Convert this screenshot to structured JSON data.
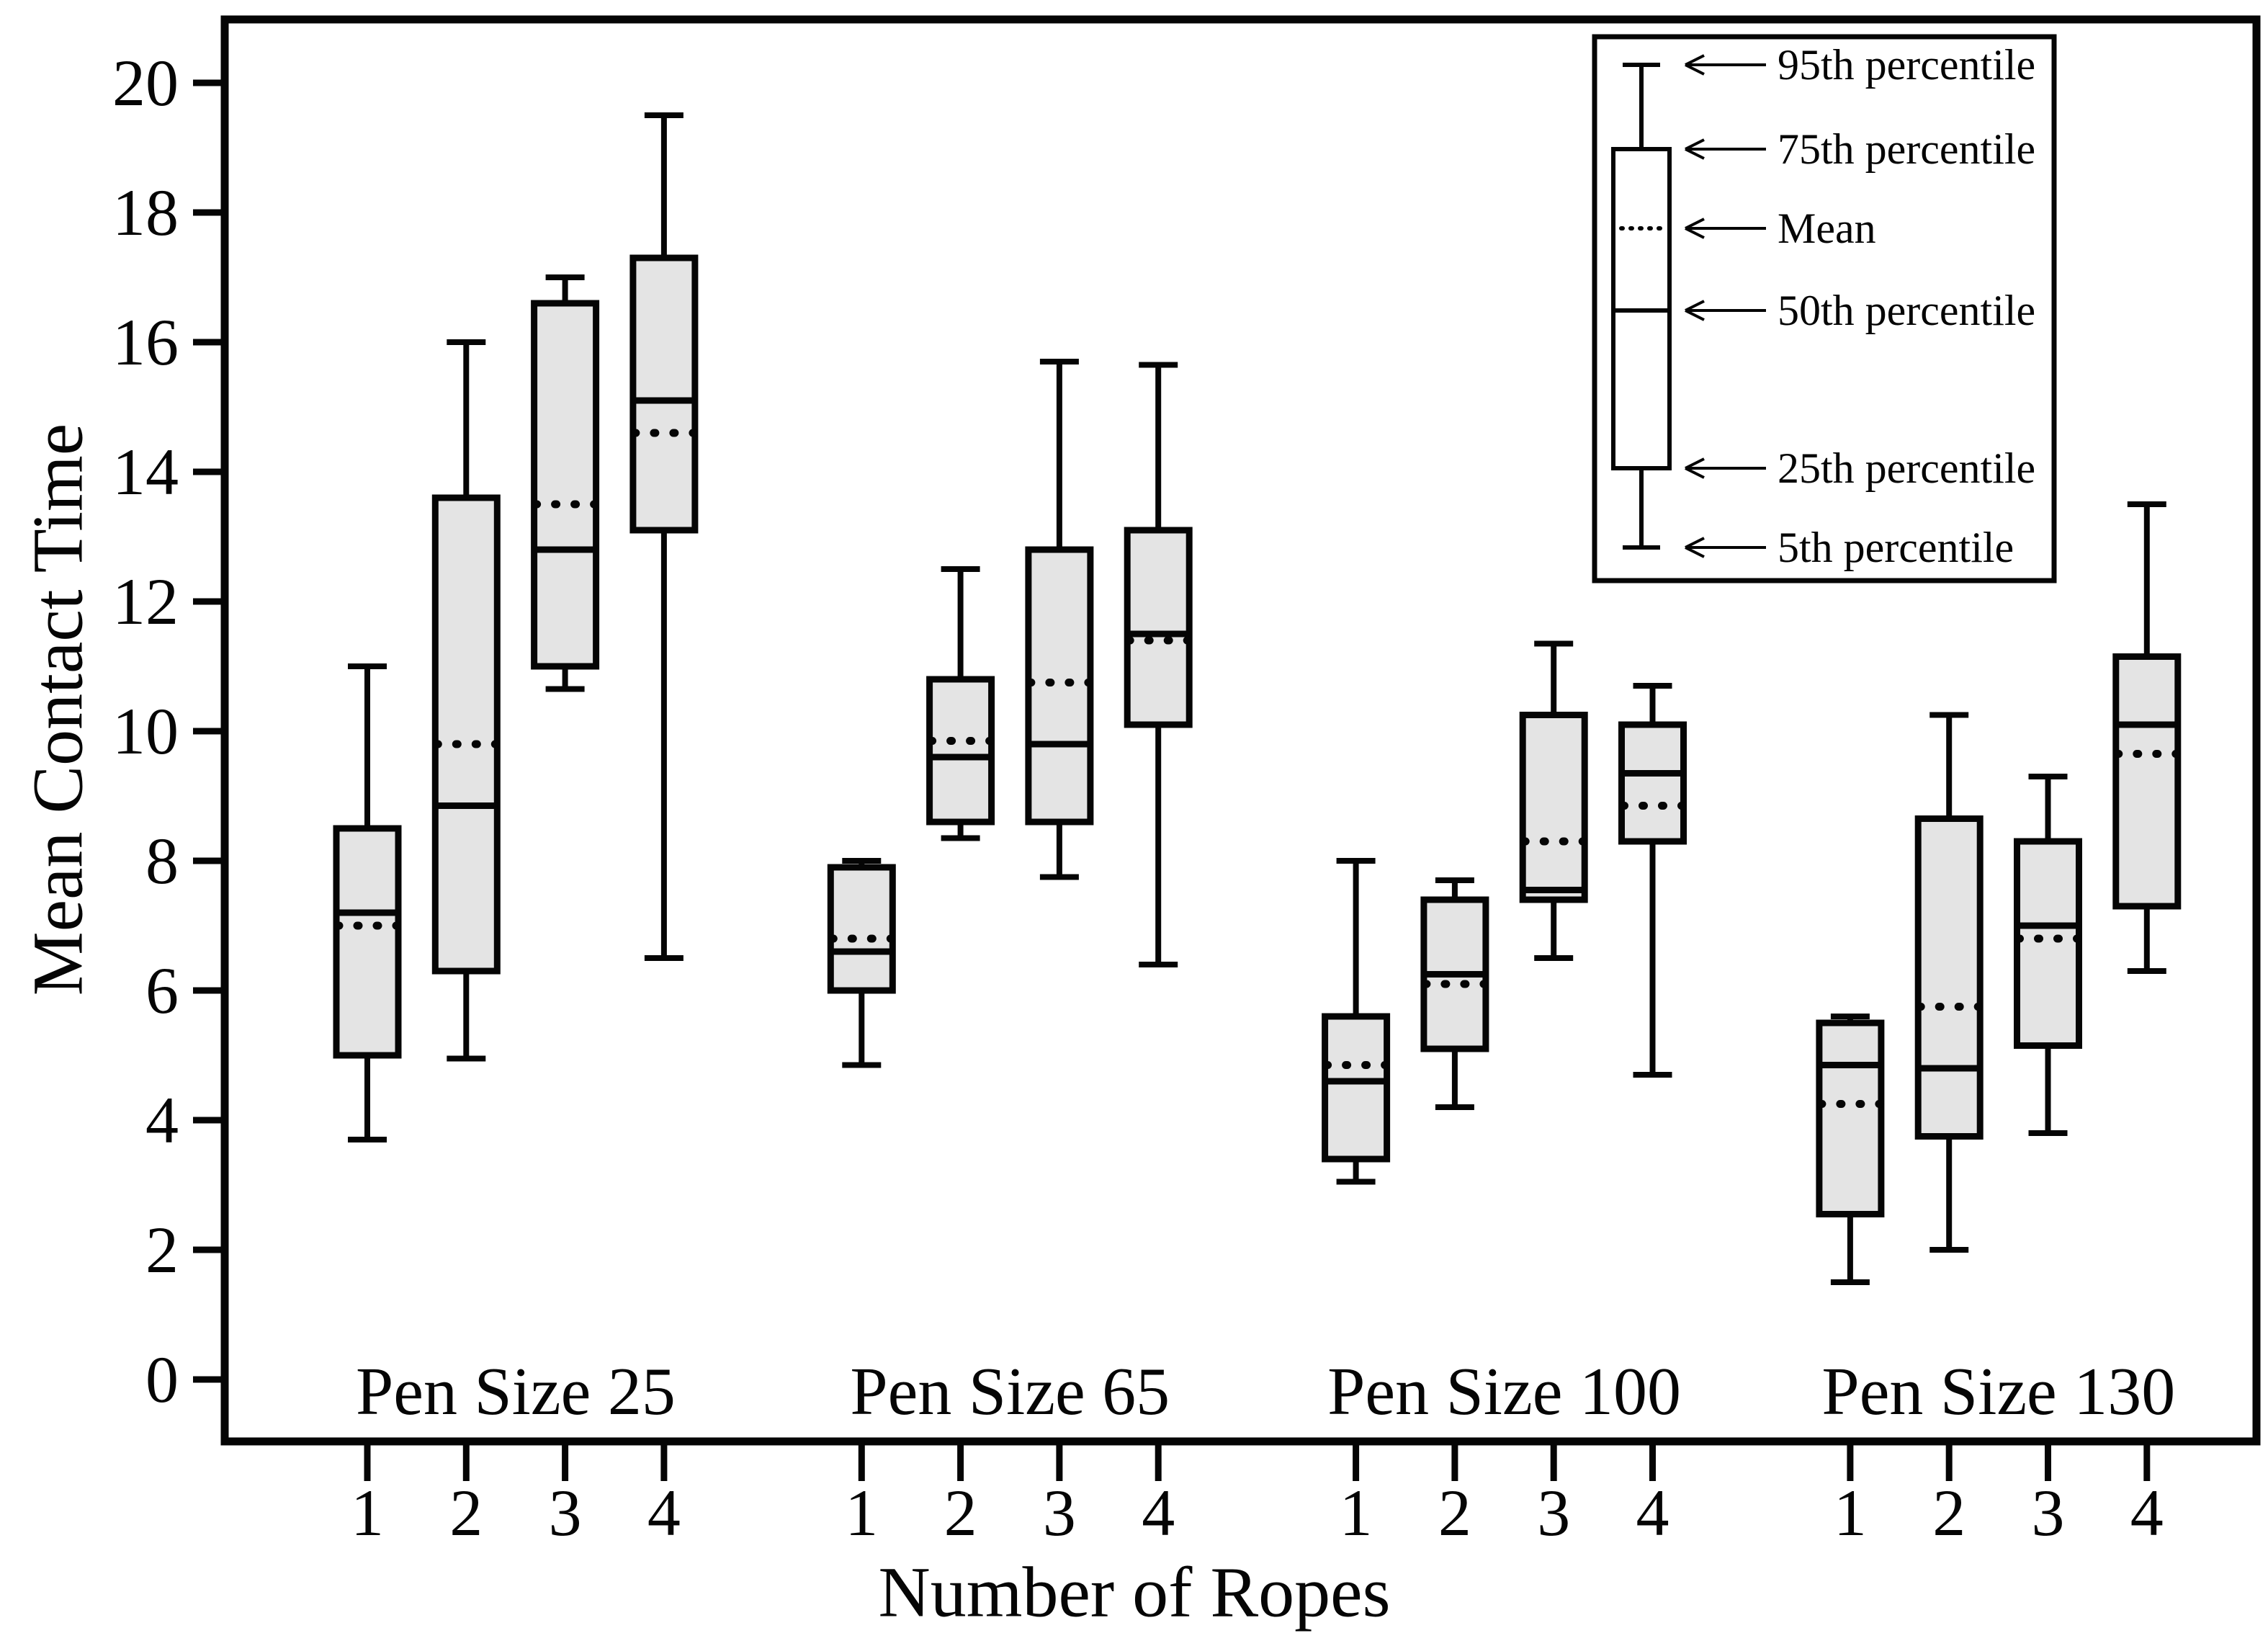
{
  "chart_data": {
    "type": "boxplot",
    "title": "",
    "xlabel": "Number of Ropes",
    "ylabel": "Mean Contact Time",
    "y_axis": {
      "min": 0,
      "max": 20,
      "tick_step": 2,
      "tick_labels": [
        "0",
        "2",
        "4",
        "6",
        "8",
        "10",
        "12",
        "14",
        "16",
        "18",
        "20"
      ],
      "axis_range_drawn": [
        -0.95,
        21.0
      ]
    },
    "x_axis": {
      "rope_labels": [
        "1",
        "2",
        "3",
        "4"
      ],
      "group_labels": [
        "Pen Size 25",
        "Pen Size 65",
        "Pen Size 100",
        "Pen Size 130"
      ]
    },
    "grid": false,
    "legend_position": "top-right",
    "legend": {
      "entries": [
        "95th percentile",
        "75th percentile",
        "Mean",
        "50th percentile",
        "25th percentile",
        "5th percentile"
      ]
    },
    "groups": [
      {
        "label": "Pen Size 25",
        "boxes": [
          {
            "rope": "1",
            "p5": 3.7,
            "q1": 5.0,
            "median": 7.2,
            "mean": 7.0,
            "q3": 8.5,
            "p95": 11.0
          },
          {
            "rope": "2",
            "p5": 4.95,
            "q1": 6.3,
            "median": 8.85,
            "mean": 9.8,
            "q3": 13.6,
            "p95": 16.0
          },
          {
            "rope": "3",
            "p5": 10.65,
            "q1": 11.0,
            "median": 12.8,
            "mean": 13.5,
            "q3": 16.6,
            "p95": 17.0
          },
          {
            "rope": "4",
            "p5": 6.5,
            "q1": 13.1,
            "median": 15.1,
            "mean": 14.6,
            "q3": 17.3,
            "p95": 19.5
          }
        ]
      },
      {
        "label": "Pen Size 65",
        "boxes": [
          {
            "rope": "1",
            "p5": 4.85,
            "q1": 6.0,
            "median": 6.6,
            "mean": 6.8,
            "q3": 7.9,
            "p95": 8.0
          },
          {
            "rope": "2",
            "p5": 8.35,
            "q1": 8.6,
            "median": 9.6,
            "mean": 9.85,
            "q3": 10.8,
            "p95": 12.5
          },
          {
            "rope": "3",
            "p5": 7.75,
            "q1": 8.6,
            "median": 9.8,
            "mean": 10.75,
            "q3": 12.8,
            "p95": 15.7
          },
          {
            "rope": "4",
            "p5": 6.4,
            "q1": 10.1,
            "median": 11.5,
            "mean": 11.4,
            "q3": 13.1,
            "p95": 15.65
          }
        ]
      },
      {
        "label": "Pen Size 100",
        "boxes": [
          {
            "rope": "1",
            "p5": 3.05,
            "q1": 3.4,
            "median": 4.6,
            "mean": 4.85,
            "q3": 5.6,
            "p95": 8.0
          },
          {
            "rope": "2",
            "p5": 4.2,
            "q1": 5.1,
            "median": 6.25,
            "mean": 6.1,
            "q3": 7.4,
            "p95": 7.7
          },
          {
            "rope": "3",
            "p5": 6.5,
            "q1": 7.4,
            "median": 7.55,
            "mean": 8.3,
            "q3": 10.25,
            "p95": 11.35
          },
          {
            "rope": "4",
            "p5": 4.7,
            "q1": 8.3,
            "median": 9.35,
            "mean": 8.85,
            "q3": 10.1,
            "p95": 10.7
          }
        ]
      },
      {
        "label": "Pen Size 130",
        "boxes": [
          {
            "rope": "1",
            "p5": 1.5,
            "q1": 2.55,
            "median": 4.85,
            "mean": 4.25,
            "q3": 5.5,
            "p95": 5.6
          },
          {
            "rope": "2",
            "p5": 2.0,
            "q1": 3.75,
            "median": 4.8,
            "mean": 5.75,
            "q3": 8.65,
            "p95": 10.25
          },
          {
            "rope": "3",
            "p5": 3.8,
            "q1": 5.15,
            "median": 7.0,
            "mean": 6.8,
            "q3": 8.3,
            "p95": 9.3
          },
          {
            "rope": "4",
            "p5": 6.3,
            "q1": 7.3,
            "median": 10.1,
            "mean": 9.65,
            "q3": 11.15,
            "p95": 13.5
          }
        ]
      }
    ],
    "colors": {
      "box_fill": "#e4e4e4",
      "legend_box_fill": "#ffffff",
      "stroke": "#050505",
      "background": "#ffffff"
    }
  }
}
